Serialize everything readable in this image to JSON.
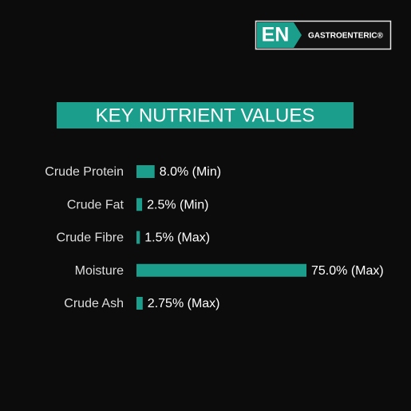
{
  "logo": {
    "badge": "EN",
    "text": "GASTROENTERIC®"
  },
  "chart_data": {
    "type": "bar",
    "orientation": "horizontal",
    "title": "KEY NUTRIENT VALUES",
    "categories": [
      "Crude Protein",
      "Crude Fat",
      "Crude Fibre",
      "Moisture",
      "Crude Ash"
    ],
    "values": [
      8.0,
      2.5,
      1.5,
      75.0,
      2.75
    ],
    "value_labels": [
      "8.0% (Min)",
      "2.5% (Min)",
      "1.5% (Max)",
      "75.0% (Max)",
      "2.75% (Max)"
    ],
    "color": "#1b9e8c"
  }
}
